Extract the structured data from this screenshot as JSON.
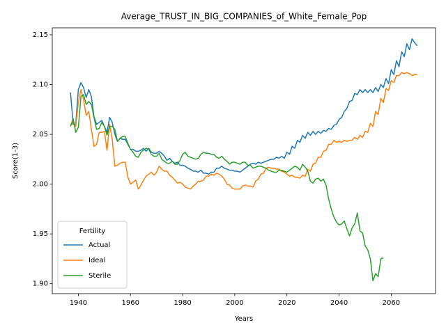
{
  "chart_data": {
    "type": "line",
    "title": "Average_TRUST_IN_BIG_COMPANIES_of_White_Female_Pop",
    "xlabel": "Years",
    "ylabel": "Score(1-3)",
    "legend_title": "Fertility",
    "legend": "lower left",
    "grid": false,
    "xlim": [
      1930,
      2077
    ],
    "ylim": [
      1.89,
      2.157
    ],
    "xticks": [
      1940,
      1960,
      1980,
      2000,
      2020,
      2040,
      2060
    ],
    "yticks": [
      {
        "value": 1.9,
        "label": "1.90"
      },
      1.95,
      {
        "value": 2.0,
        "label": "2.00"
      },
      2.05,
      {
        "value": 2.1,
        "label": "2.10"
      },
      2.15
    ],
    "x": [
      1937,
      1938,
      1939,
      1940,
      1941,
      1942,
      1943,
      1944,
      1945,
      1946,
      1947,
      1948,
      1949,
      1950,
      1951,
      1952,
      1953,
      1954,
      1955,
      1956,
      1957,
      1958,
      1959,
      1960,
      1961,
      1962,
      1963,
      1964,
      1965,
      1966,
      1967,
      1968,
      1969,
      1970,
      1971,
      1972,
      1973,
      1974,
      1975,
      1976,
      1977,
      1978,
      1979,
      1980,
      1981,
      1982,
      1983,
      1984,
      1985,
      1986,
      1987,
      1988,
      1989,
      1990,
      1991,
      1992,
      1993,
      1994,
      1995,
      1996,
      1997,
      1998,
      1999,
      2000,
      2001,
      2002,
      2003,
      2004,
      2005,
      2006,
      2007,
      2008,
      2009,
      2010,
      2011,
      2012,
      2013,
      2014,
      2015,
      2016,
      2017,
      2018,
      2019,
      2020,
      2021,
      2022,
      2023,
      2024,
      2025,
      2026,
      2027,
      2028,
      2029,
      2030,
      2031,
      2032,
      2033,
      2034,
      2035,
      2036,
      2037,
      2038,
      2039,
      2040,
      2041,
      2042,
      2043,
      2044,
      2045,
      2046,
      2047,
      2048,
      2049,
      2050,
      2051,
      2052,
      2053,
      2054,
      2055,
      2056,
      2057,
      2058,
      2059,
      2060,
      2061,
      2062,
      2063,
      2064,
      2065,
      2066,
      2067,
      2068,
      2069,
      2070
    ],
    "series": [
      {
        "name": "Actual",
        "color": "#1f77b4",
        "values": [
          2.092,
          2.06,
          2.06,
          2.095,
          2.102,
          2.097,
          2.087,
          2.095,
          2.088,
          2.068,
          2.06,
          2.062,
          2.064,
          2.058,
          2.052,
          2.067,
          2.062,
          2.05,
          2.043,
          2.046,
          2.045,
          2.045,
          2.04,
          2.035,
          2.035,
          2.033,
          2.033,
          2.034,
          2.036,
          2.033,
          2.036,
          2.032,
          2.031,
          2.031,
          2.033,
          2.031,
          2.028,
          2.024,
          2.026,
          2.023,
          2.021,
          2.022,
          2.019,
          2.019,
          2.018,
          2.016,
          2.015,
          2.013,
          2.013,
          2.012,
          2.014,
          2.011,
          2.011,
          2.01,
          2.012,
          2.012,
          2.016,
          2.016,
          2.018,
          2.016,
          2.015,
          2.014,
          2.014,
          2.013,
          2.013,
          2.012,
          2.014,
          2.016,
          2.018,
          2.02,
          2.021,
          2.02,
          2.022,
          2.021,
          2.022,
          2.023,
          2.024,
          2.025,
          2.025,
          2.027,
          2.026,
          2.028,
          2.026,
          2.032,
          2.03,
          2.038,
          2.036,
          2.044,
          2.042,
          2.049,
          2.046,
          2.052,
          2.049,
          2.053,
          2.05,
          2.053,
          2.051,
          2.054,
          2.053,
          2.056,
          2.055,
          2.059,
          2.06,
          2.065,
          2.067,
          2.073,
          2.076,
          2.083,
          2.084,
          2.091,
          2.09,
          2.095,
          2.092,
          2.095,
          2.092,
          2.095,
          2.092,
          2.097,
          2.093,
          2.1,
          2.097,
          2.106,
          2.101,
          2.115,
          2.11,
          2.124,
          2.118,
          2.133,
          2.128,
          2.141,
          2.135,
          2.146,
          2.142,
          2.139
        ]
      },
      {
        "name": "Ideal",
        "color": "#ff7f0e",
        "values": [
          2.058,
          2.063,
          2.058,
          2.082,
          2.095,
          2.085,
          2.069,
          2.073,
          2.055,
          2.038,
          2.04,
          2.052,
          2.052,
          2.053,
          2.034,
          2.06,
          2.045,
          2.018,
          2.019,
          2.021,
          2.022,
          2.022,
          2.007,
          2.0,
          2.002,
          2.004,
          1.995,
          1.999,
          2.004,
          2.008,
          2.01,
          2.012,
          2.009,
          2.012,
          2.018,
          2.015,
          2.013,
          2.013,
          2.009,
          2.007,
          2.004,
          2.001,
          2.002,
          2.0,
          1.997,
          1.996,
          1.995,
          1.998,
          2.0,
          2.003,
          2.003,
          2.004,
          2.008,
          2.008,
          2.01,
          2.009,
          2.011,
          2.01,
          2.008,
          2.005,
          2.0,
          1.999,
          1.996,
          1.995,
          1.995,
          1.995,
          1.998,
          1.999,
          1.998,
          1.998,
          1.997,
          2.003,
          2.005,
          2.01,
          2.011,
          2.016,
          2.017,
          2.016,
          2.016,
          2.015,
          2.015,
          2.013,
          2.012,
          2.01,
          2.008,
          2.009,
          2.007,
          2.007,
          2.006,
          2.009,
          2.008,
          2.015,
          2.013,
          2.02,
          2.021,
          2.027,
          2.027,
          2.033,
          2.034,
          2.04,
          2.04,
          2.044,
          2.042,
          2.043,
          2.042,
          2.044,
          2.043,
          2.044,
          2.044,
          2.047,
          2.045,
          2.049,
          2.047,
          2.053,
          2.052,
          2.061,
          2.058,
          2.073,
          2.07,
          2.086,
          2.082,
          2.096,
          2.094,
          2.104,
          2.102,
          2.109,
          2.109,
          2.112,
          2.111,
          2.112,
          2.111,
          2.109,
          2.11,
          2.11
        ]
      },
      {
        "name": "Sterile",
        "color": "#2ca02c",
        "values": [
          2.058,
          2.066,
          2.052,
          2.057,
          2.088,
          2.09,
          2.08,
          2.083,
          2.08,
          2.067,
          2.055,
          2.056,
          2.062,
          2.058,
          2.049,
          2.058,
          2.058,
          2.055,
          2.043,
          2.046,
          2.048,
          2.048,
          2.041,
          2.035,
          2.032,
          2.028,
          2.027,
          2.032,
          2.034,
          2.036,
          2.035,
          2.03,
          2.028,
          2.028,
          2.031,
          2.025,
          2.023,
          2.021,
          2.021,
          2.023,
          2.02,
          2.02,
          2.024,
          2.03,
          2.032,
          2.028,
          2.027,
          2.026,
          2.025,
          2.026,
          2.03,
          2.032,
          2.031,
          2.031,
          2.03,
          2.03,
          2.027,
          2.026,
          2.028,
          2.025,
          2.023,
          2.02,
          2.022,
          2.022,
          2.021,
          2.02,
          2.022,
          2.022,
          2.019,
          2.019,
          2.016,
          2.017,
          2.018,
          2.018,
          2.017,
          2.016,
          2.014,
          2.013,
          2.012,
          2.012,
          2.014,
          2.014,
          2.013,
          2.012,
          2.014,
          2.016,
          2.018,
          2.017,
          2.014,
          2.02,
          2.017,
          2.013,
          2.003,
          2.001,
          2.005,
          2.006,
          2.003,
          2.005,
          1.999,
          1.985,
          1.975,
          1.967,
          1.962,
          1.959,
          1.96,
          1.963,
          1.955,
          1.948,
          1.956,
          1.96,
          1.971,
          1.953,
          1.951,
          1.938,
          1.934,
          1.925,
          1.903,
          1.91,
          1.907,
          1.925,
          1.926,
          null,
          null,
          null,
          null,
          null,
          null,
          null,
          null,
          null,
          null,
          null,
          null,
          null
        ]
      }
    ]
  }
}
